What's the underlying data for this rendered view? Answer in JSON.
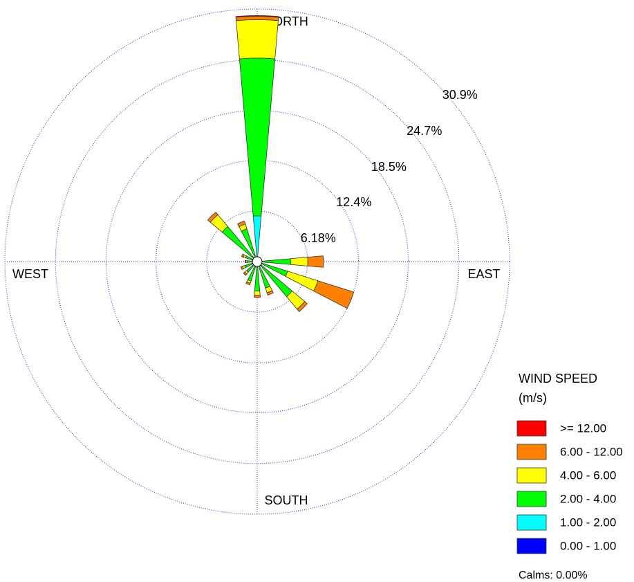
{
  "chart_data": {
    "type": "windrose",
    "categories": [
      "NORTH",
      null,
      null,
      null,
      "EAST",
      null,
      null,
      null,
      "SOUTH",
      null,
      null,
      null,
      "WEST",
      null,
      null,
      null
    ],
    "series": [
      {
        "name": "0.00 - 1.00",
        "color": "#0000ff",
        "values": [
          0,
          0,
          0,
          0,
          0,
          0,
          0,
          0,
          0,
          0,
          0,
          0,
          0,
          0,
          0,
          0
        ]
      },
      {
        "name": "1.00 - 2.00",
        "color": "#00ffff",
        "values": [
          5.6,
          0,
          0,
          0,
          0.5,
          0.4,
          0.3,
          0.2,
          0.3,
          0.2,
          0.1,
          0.1,
          0.1,
          0.1,
          0.3,
          0.3
        ]
      },
      {
        "name": "2.00 - 4.00",
        "color": "#00ff00",
        "values": [
          19.3,
          0,
          0,
          0,
          3.6,
          3.5,
          5.3,
          3.2,
          3.3,
          2.3,
          1.6,
          1.5,
          1.1,
          1.4,
          5.3,
          3.9
        ]
      },
      {
        "name": "4.00 - 6.00",
        "color": "#ffff00",
        "values": [
          4.7,
          0,
          0,
          0,
          2.1,
          3.9,
          2.0,
          0.6,
          0.5,
          0.3,
          0.3,
          0.3,
          0.2,
          0.3,
          1.9,
          0.6
        ]
      },
      {
        "name": "6.00 - 12.00",
        "color": "#ff8000",
        "values": [
          0.4,
          0,
          0,
          0,
          1.9,
          4.6,
          0.4,
          0.3,
          0.3,
          0.2,
          0.2,
          0.2,
          0.1,
          0.2,
          0.4,
          0.4
        ]
      },
      {
        "name": ">= 12.00",
        "color": "#ff0000",
        "values": [
          0.1,
          0,
          0,
          0,
          0,
          0,
          0,
          0,
          0,
          0,
          0,
          0,
          0,
          0,
          0,
          0
        ]
      }
    ],
    "ylim": [
      0,
      30.9
    ],
    "yticks": [
      {
        "value": 6.18,
        "label": "6.18%"
      },
      {
        "value": 12.4,
        "label": "12.4%"
      },
      {
        "value": 18.5,
        "label": "18.5%"
      },
      {
        "value": 24.7,
        "label": "24.7%"
      },
      {
        "value": 30.9,
        "label": "30.9%"
      }
    ],
    "legend_title": [
      "WIND SPEED",
      "(m/s)"
    ],
    "annotation": "Calms: 0.00%",
    "grid": true
  }
}
